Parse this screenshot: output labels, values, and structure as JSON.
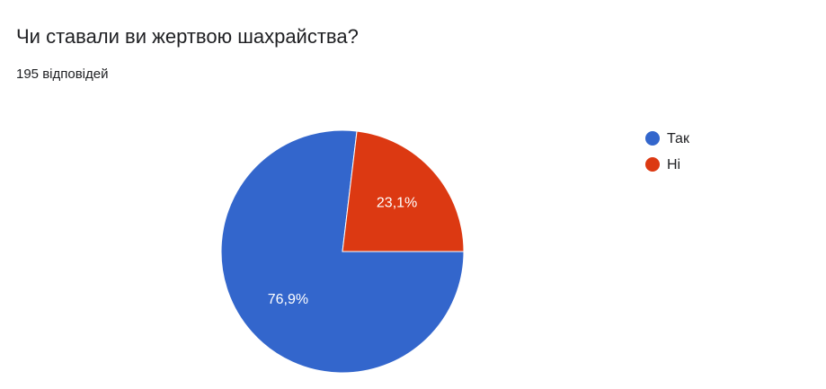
{
  "chart_data": {
    "type": "pie",
    "title": "Чи ставали ви жертвою шахрайства?",
    "subtitle": "195 відповідей",
    "series": [
      {
        "name": "Так",
        "color": "#3366cc",
        "values": [
          76.9
        ],
        "value_labels": [
          "76,9%"
        ]
      },
      {
        "name": "Ні",
        "color": "#dc3912",
        "values": [
          23.1
        ],
        "value_labels": [
          "23,1%"
        ]
      }
    ]
  }
}
